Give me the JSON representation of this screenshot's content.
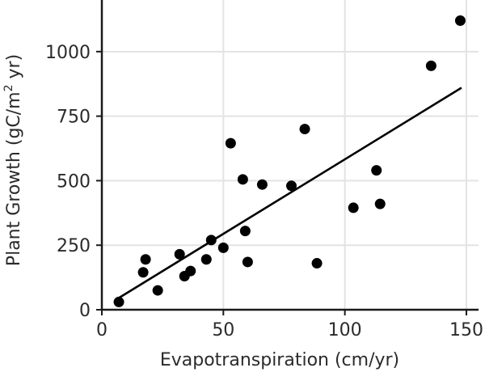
{
  "chart_data": {
    "type": "scatter",
    "title": "",
    "xlabel": "Evapotranspiration (cm/yr)",
    "ylabel_parts": {
      "before": "Plant Growth (gC/m",
      "superscript": "2",
      "after": " yr)"
    },
    "xlim": [
      0,
      155
    ],
    "ylim": [
      0,
      1200
    ],
    "x_ticks": [
      0,
      50,
      100,
      150
    ],
    "y_ticks": [
      0,
      250,
      500,
      750,
      1000
    ],
    "grid": true,
    "legend": "none",
    "point_color": "#000000",
    "line_color": "#000000",
    "series": [
      {
        "points": [
          {
            "x": 7,
            "y": 30
          },
          {
            "x": 17,
            "y": 145
          },
          {
            "x": 18,
            "y": 195
          },
          {
            "x": 23,
            "y": 75
          },
          {
            "x": 32,
            "y": 215
          },
          {
            "x": 34,
            "y": 130
          },
          {
            "x": 36.5,
            "y": 150
          },
          {
            "x": 43,
            "y": 195
          },
          {
            "x": 45,
            "y": 270
          },
          {
            "x": 50,
            "y": 240
          },
          {
            "x": 53,
            "y": 645
          },
          {
            "x": 58,
            "y": 505
          },
          {
            "x": 59,
            "y": 305
          },
          {
            "x": 60,
            "y": 185
          },
          {
            "x": 66,
            "y": 485
          },
          {
            "x": 78,
            "y": 480
          },
          {
            "x": 83.5,
            "y": 700
          },
          {
            "x": 88.5,
            "y": 180
          },
          {
            "x": 103.5,
            "y": 395
          },
          {
            "x": 113,
            "y": 540
          },
          {
            "x": 114.5,
            "y": 410
          },
          {
            "x": 135.5,
            "y": 945
          },
          {
            "x": 147.5,
            "y": 1120
          }
        ]
      }
    ],
    "trendline": {
      "x": [
        6,
        148
      ],
      "y": [
        40,
        860
      ]
    }
  }
}
